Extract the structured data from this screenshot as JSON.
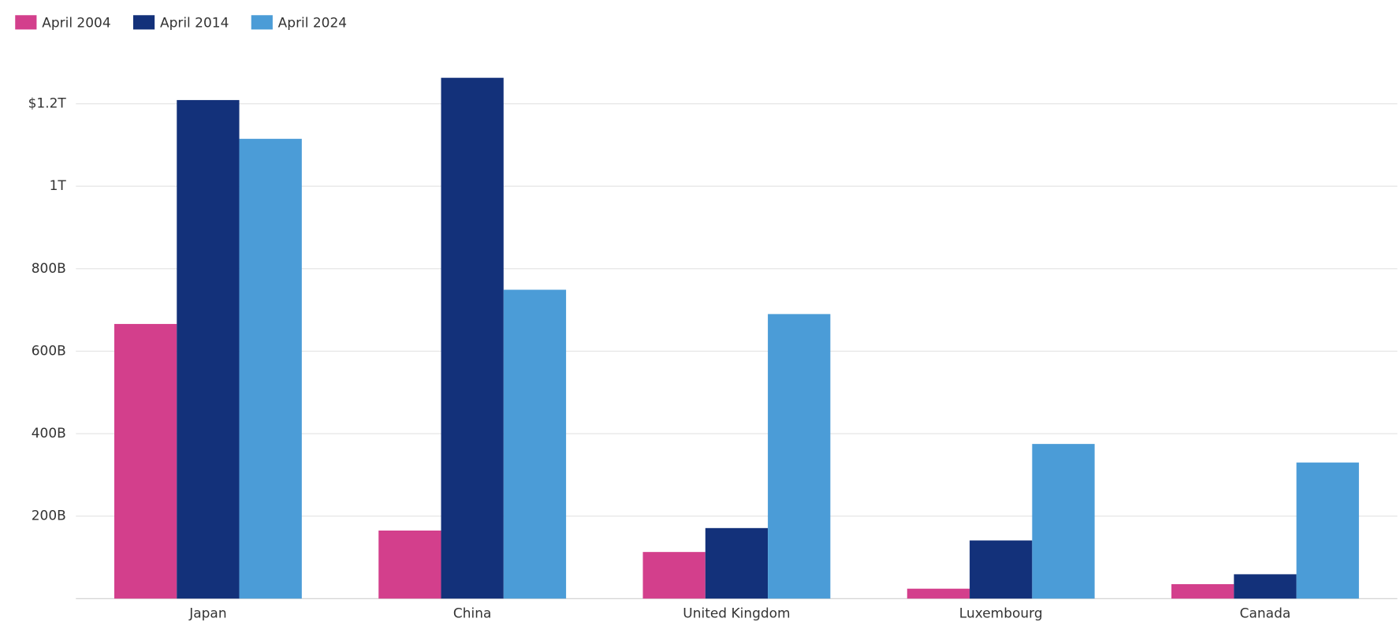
{
  "chart_data": {
    "type": "bar",
    "categories": [
      "Japan",
      "China",
      "United Kingdom",
      "Luxembourg",
      "Canada"
    ],
    "series": [
      {
        "name": "April 2004",
        "color": "#d33f8c",
        "values": [
          666,
          165,
          113,
          24,
          35
        ]
      },
      {
        "name": "April 2014",
        "color": "#13317a",
        "values": [
          1209,
          1263,
          171,
          141,
          59
        ]
      },
      {
        "name": "April 2024",
        "color": "#4b9cd7",
        "values": [
          1115,
          749,
          690,
          375,
          330
        ]
      }
    ],
    "ylim": [
      0,
      1300
    ],
    "yticks": [
      {
        "value": 200,
        "label": "200B"
      },
      {
        "value": 400,
        "label": "400B"
      },
      {
        "value": 600,
        "label": "600B"
      },
      {
        "value": 800,
        "label": "800B"
      },
      {
        "value": 1000,
        "label": "1T"
      },
      {
        "value": 1200,
        "label": "$1.2T"
      }
    ],
    "grid": true,
    "legend": "top-left"
  }
}
